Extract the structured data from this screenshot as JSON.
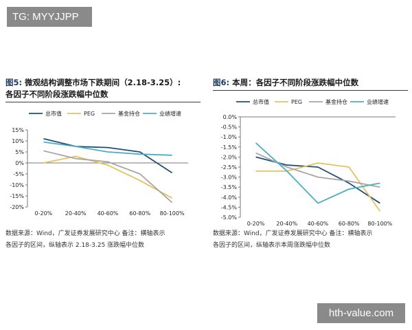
{
  "watermarks": {
    "top_left": "TG: MYYJJPP",
    "bottom_right": "hth-value.com"
  },
  "figures": [
    {
      "fig_label": "图5:",
      "title_line1": " 微观结构调整市场下跌期间（2.18-3.25）:",
      "title_line2": "各因子不同阶段涨跌幅中位数",
      "note_line1": "数据来源：Wind，广发证券发展研究中心    备注：横轴表示",
      "note_line2": "各因子的区间，纵轴表示 2.18-3.25 涨跌幅中位数"
    },
    {
      "fig_label": "图6:",
      "title_line1": " 本周：各因子不同阶段涨跌幅中位数",
      "title_line2": "",
      "note_line1": "数据来源：Wind，广发证券发展研究中心      备注：横轴表示",
      "note_line2": "各因子的区间，纵轴表示本周涨跌幅中位数"
    }
  ],
  "chart_data": [
    {
      "type": "line",
      "categories": [
        "0-20%",
        "20-40%",
        "40-60%",
        "60-80%",
        "80-100%"
      ],
      "y_ticks": [
        "15%",
        "10%",
        "5%",
        "0%",
        "-5%",
        "-10%",
        "-15%",
        "-20%"
      ],
      "ylim": [
        -20,
        15
      ],
      "y_step": 5,
      "grid": false,
      "legend_position": "top",
      "series": [
        {
          "name": "总市值",
          "color": "#1f4e79",
          "values": [
            11,
            7.5,
            7,
            5,
            -4.5
          ]
        },
        {
          "name": "PEG",
          "color": "#e6c25a",
          "values": [
            0,
            3,
            -1,
            -8,
            -16
          ]
        },
        {
          "name": "基金持仓",
          "color": "#a6a6a6",
          "values": [
            5.5,
            2,
            0.5,
            -5,
            -18
          ]
        },
        {
          "name": "业绩增速",
          "color": "#4bacc6",
          "values": [
            9.5,
            7.5,
            5,
            4,
            3.5
          ]
        }
      ]
    },
    {
      "type": "line",
      "categories": [
        "0-20%",
        "20-40%",
        "40-60%",
        "60-80%",
        "80-100%"
      ],
      "y_ticks": [
        "0.0%",
        "-0.5%",
        "-1.0%",
        "-1.5%",
        "-2.0%",
        "-2.5%",
        "-3.0%",
        "-3.5%",
        "-4.0%",
        "-4.5%",
        "-5.0%"
      ],
      "ylim": [
        -5,
        0
      ],
      "y_step": 0.5,
      "grid": false,
      "legend_position": "top",
      "series": [
        {
          "name": "总市值",
          "color": "#1f4e79",
          "values": [
            -2.0,
            -2.4,
            -2.5,
            -3.3,
            -4.3
          ]
        },
        {
          "name": "PEG",
          "color": "#e6c25a",
          "values": [
            -2.7,
            -2.7,
            -2.3,
            -2.5,
            -4.7
          ]
        },
        {
          "name": "基金持仓",
          "color": "#a6a6a6",
          "values": [
            -1.8,
            -2.5,
            -3.0,
            -3.2,
            -3.5
          ]
        },
        {
          "name": "业绩增速",
          "color": "#4bacc6",
          "values": [
            -1.3,
            -2.7,
            -4.3,
            -3.6,
            -3.3
          ]
        }
      ]
    }
  ]
}
